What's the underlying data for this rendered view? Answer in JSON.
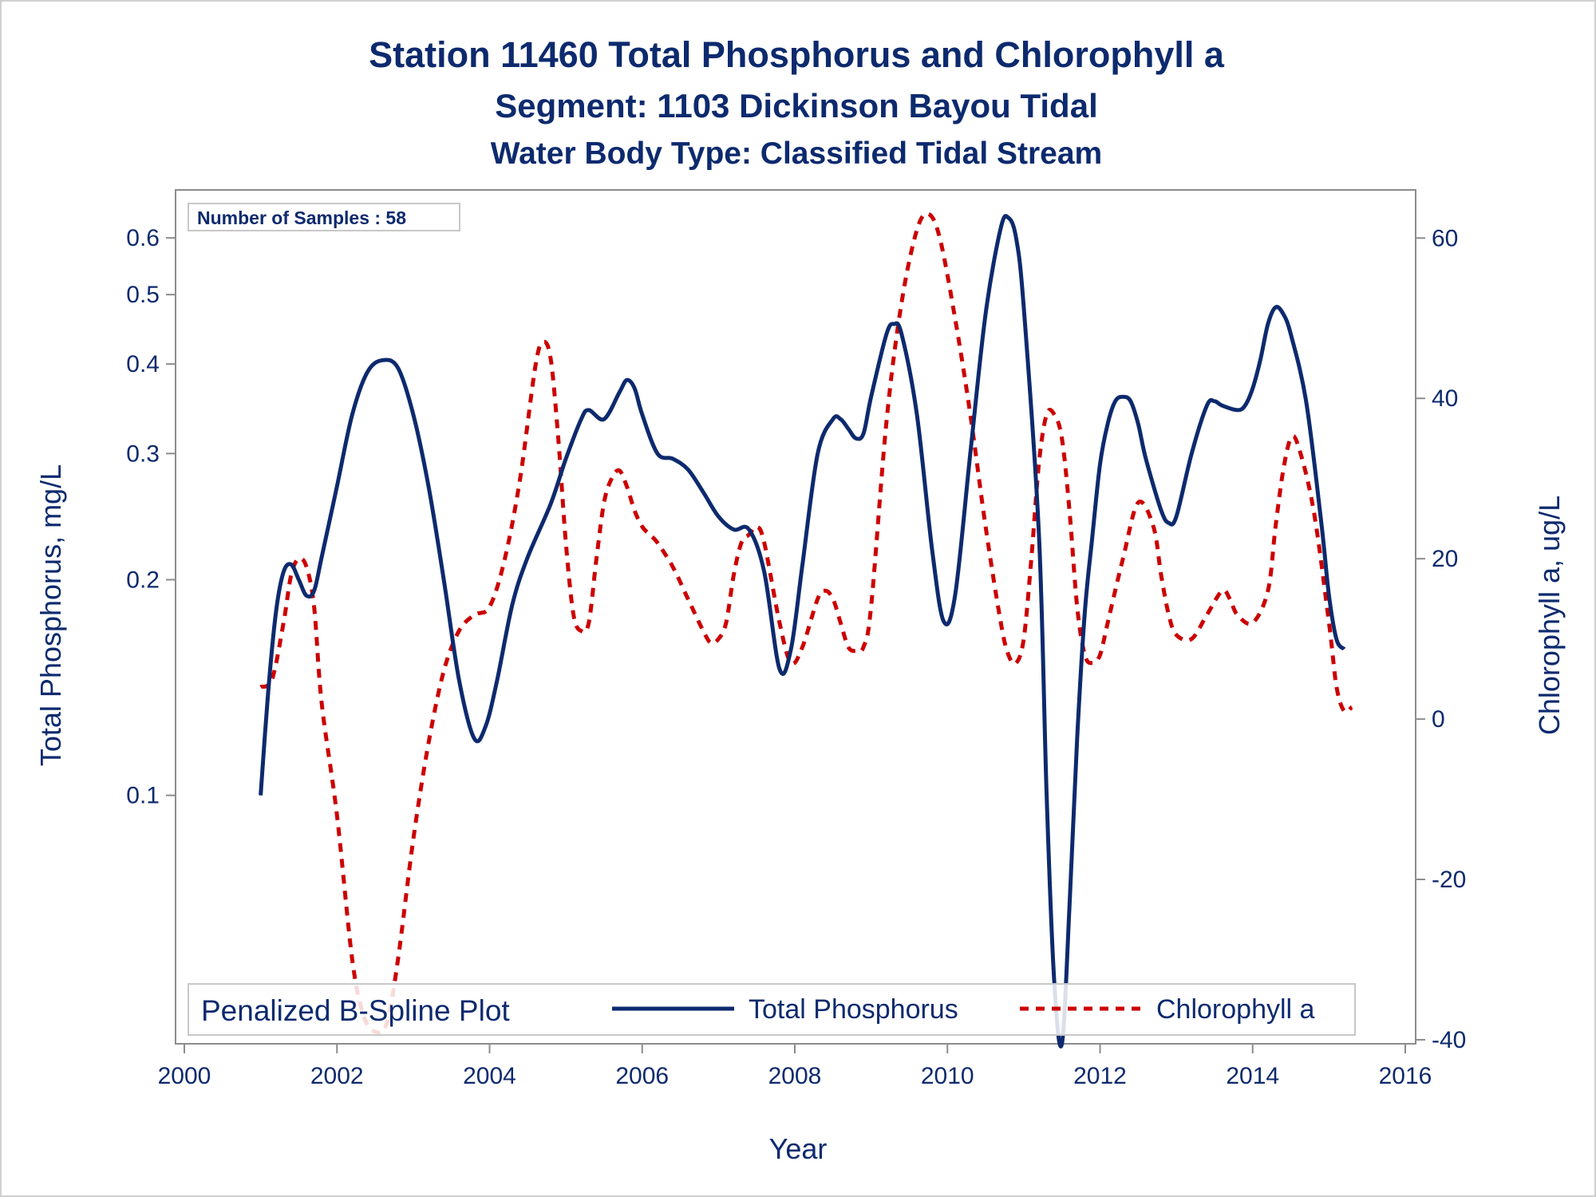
{
  "chart_data": {
    "type": "line",
    "title": "Station 11460  Total Phosphorus and Chlorophyll a",
    "subtitle": "Segment: 1103  Dickinson Bayou Tidal",
    "subtitle2": "Water Body Type: Classified Tidal Stream",
    "xlabel": "Year",
    "ylabel": "Total Phosphorus, mg/L",
    "y2label": "Chlorophyll a, ug/L",
    "xlim": [
      2000,
      2016
    ],
    "xticks": [
      "2000",
      "2002",
      "2004",
      "2006",
      "2008",
      "2010",
      "2012",
      "2014",
      "2016"
    ],
    "ylim": [
      0.045,
      0.7
    ],
    "yscale": "log",
    "yticks": [
      "0.1",
      "0.2",
      "0.3",
      "0.4",
      "0.5",
      "0.6"
    ],
    "y2lim": [
      -40.5,
      66
    ],
    "y2ticks": [
      "-40",
      "-20",
      "0",
      "20",
      "40",
      "60"
    ],
    "inset": "Number of Samples : 58",
    "legend": {
      "title": "Penalized B-Spline Plot",
      "placement": "bottom-inside",
      "entries": [
        "Total Phosphorus",
        "Chlorophyll a"
      ]
    },
    "series": [
      {
        "name": "Total Phosphorus",
        "axis": "left",
        "color": "#0d2a6e",
        "style": "solid",
        "x": [
          2001.0,
          2001.1,
          2001.2,
          2001.3,
          2001.4,
          2001.5,
          2001.6,
          2001.7,
          2001.8,
          2002.0,
          2002.2,
          2002.4,
          2002.6,
          2002.8,
          2003.0,
          2003.2,
          2003.4,
          2003.6,
          2003.8,
          2003.95,
          2004.1,
          2004.3,
          2004.5,
          2004.8,
          2005.0,
          2005.2,
          2005.3,
          2005.5,
          2005.7,
          2005.8,
          2005.9,
          2006.0,
          2006.2,
          2006.4,
          2006.6,
          2006.8,
          2007.0,
          2007.2,
          2007.4,
          2007.6,
          2007.8,
          2007.95,
          2008.1,
          2008.3,
          2008.5,
          2008.6,
          2008.7,
          2008.8,
          2008.9,
          2009.0,
          2009.2,
          2009.3,
          2009.4,
          2009.6,
          2009.8,
          2009.95,
          2010.1,
          2010.3,
          2010.5,
          2010.7,
          2010.8,
          2010.9,
          2011.0,
          2011.2,
          2011.3,
          2011.4,
          2011.5,
          2011.6,
          2011.7,
          2011.8,
          2011.9,
          2012.0,
          2012.1,
          2012.2,
          2012.3,
          2012.4,
          2012.5,
          2012.6,
          2012.8,
          2012.9,
          2013.0,
          2013.2,
          2013.4,
          2013.5,
          2013.6,
          2013.8,
          2013.9,
          2014.0,
          2014.1,
          2014.2,
          2014.3,
          2014.4,
          2014.5,
          2014.7,
          2014.9,
          2015.0,
          2015.1,
          2015.2
        ],
        "y": [
          0.1,
          0.14,
          0.18,
          0.205,
          0.21,
          0.2,
          0.19,
          0.193,
          0.215,
          0.27,
          0.34,
          0.39,
          0.405,
          0.395,
          0.34,
          0.27,
          0.2,
          0.145,
          0.12,
          0.125,
          0.145,
          0.185,
          0.215,
          0.255,
          0.295,
          0.335,
          0.345,
          0.335,
          0.365,
          0.38,
          0.37,
          0.34,
          0.3,
          0.295,
          0.285,
          0.265,
          0.245,
          0.235,
          0.235,
          0.205,
          0.15,
          0.16,
          0.21,
          0.3,
          0.335,
          0.335,
          0.325,
          0.315,
          0.32,
          0.36,
          0.44,
          0.455,
          0.44,
          0.34,
          0.22,
          0.175,
          0.19,
          0.3,
          0.47,
          0.62,
          0.64,
          0.6,
          0.48,
          0.23,
          0.1,
          0.055,
          0.045,
          0.07,
          0.12,
          0.18,
          0.23,
          0.29,
          0.33,
          0.355,
          0.36,
          0.355,
          0.33,
          0.295,
          0.25,
          0.24,
          0.245,
          0.3,
          0.35,
          0.355,
          0.35,
          0.345,
          0.35,
          0.37,
          0.405,
          0.455,
          0.48,
          0.47,
          0.44,
          0.355,
          0.24,
          0.19,
          0.165,
          0.16
        ]
      },
      {
        "name": "Chlorophyll a",
        "axis": "right",
        "color": "#cc0000",
        "style": "dashed",
        "x": [
          2001.0,
          2001.15,
          2001.3,
          2001.4,
          2001.5,
          2001.6,
          2001.7,
          2001.8,
          2002.0,
          2002.2,
          2002.35,
          2002.5,
          2002.65,
          2002.8,
          2003.0,
          2003.2,
          2003.4,
          2003.6,
          2003.8,
          2004.0,
          2004.2,
          2004.4,
          2004.6,
          2004.7,
          2004.8,
          2004.9,
          2005.0,
          2005.1,
          2005.2,
          2005.3,
          2005.4,
          2005.5,
          2005.6,
          2005.7,
          2005.8,
          2005.9,
          2006.0,
          2006.1,
          2006.2,
          2006.4,
          2006.6,
          2006.8,
          2006.9,
          2007.0,
          2007.1,
          2007.2,
          2007.3,
          2007.4,
          2007.5,
          2007.6,
          2007.8,
          2007.95,
          2008.1,
          2008.3,
          2008.4,
          2008.5,
          2008.6,
          2008.7,
          2008.8,
          2008.9,
          2009.0,
          2009.2,
          2009.4,
          2009.6,
          2009.75,
          2009.9,
          2010.1,
          2010.3,
          2010.5,
          2010.7,
          2010.8,
          2010.9,
          2011.0,
          2011.1,
          2011.2,
          2011.3,
          2011.4,
          2011.5,
          2011.6,
          2011.7,
          2011.8,
          2011.9,
          2012.0,
          2012.1,
          2012.3,
          2012.5,
          2012.7,
          2012.8,
          2012.9,
          2013.0,
          2013.2,
          2013.4,
          2013.6,
          2013.7,
          2013.8,
          2014.0,
          2014.2,
          2014.3,
          2014.4,
          2014.5,
          2014.6,
          2014.8,
          2015.0,
          2015.1,
          2015.2,
          2015.3
        ],
        "y": [
          4,
          5,
          12,
          18,
          20,
          19,
          14,
          2,
          -12,
          -30,
          -37,
          -39,
          -38,
          -30,
          -15,
          -3,
          6,
          11,
          13,
          14,
          20,
          30,
          44,
          47,
          45,
          35,
          22,
          13,
          11,
          12,
          20,
          27,
          30,
          31,
          29,
          26,
          24,
          23,
          22,
          19,
          15,
          11,
          9.5,
          10,
          12,
          18,
          22,
          23,
          24,
          22,
          12,
          7,
          9,
          15,
          16,
          15,
          12,
          9,
          8.5,
          9,
          14,
          37,
          52,
          61,
          63,
          60,
          50,
          38,
          24,
          12,
          8,
          7,
          10,
          20,
          32,
          38,
          38,
          35,
          26,
          14,
          8,
          7,
          8,
          12,
          20,
          27,
          24,
          18,
          13,
          10.5,
          10,
          13,
          16,
          15,
          13,
          12,
          16,
          24,
          31,
          35,
          34,
          26,
          12,
          4,
          1,
          1.5
        ]
      }
    ]
  }
}
